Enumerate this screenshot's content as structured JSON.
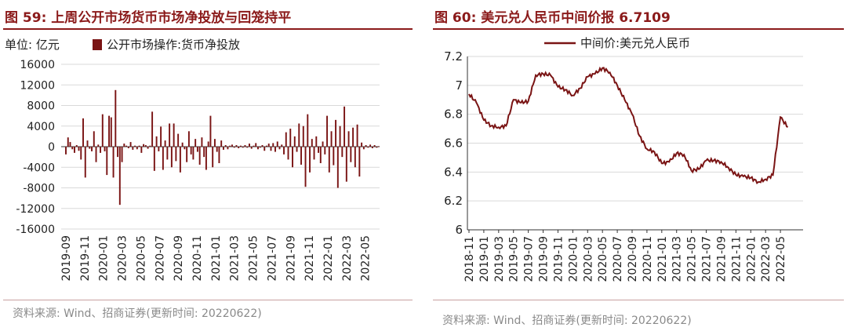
{
  "left": {
    "title": "图 59: 上周公开市场货币市场净投放与回笼持平",
    "source": "资料来源: Wind、招商证券(更新时间: 20220622)",
    "colors": {
      "bar": "#7a1414",
      "title": "#8b1a1a",
      "grid": "#d9d9d9"
    },
    "chart_data": {
      "type": "bar",
      "unit_label": "单位: 亿元",
      "legend": [
        "公开市场操作:货币净投放"
      ],
      "ylim": [
        -16000,
        16000
      ],
      "yticks": [
        "16000",
        "12000",
        "8000",
        "4000",
        "0",
        "-4000",
        "-8000",
        "-12000",
        "-16000"
      ],
      "xticks": [
        "2019-09",
        "2019-11",
        "2020-01",
        "2020-03",
        "2020-05",
        "2020-07",
        "2020-09",
        "2020-11",
        "2021-01",
        "2021-03",
        "2021-05",
        "2021-07",
        "2021-09",
        "2021-11",
        "2022-01",
        "2022-03",
        "2022-05"
      ],
      "start_month": "2019-09",
      "weeks": 146,
      "values": [
        -1500,
        1800,
        900,
        -500,
        -1200,
        300,
        -800,
        -2500,
        5500,
        -6000,
        1200,
        -400,
        -900,
        3000,
        -3000,
        400,
        -1200,
        6300,
        -900,
        -5500,
        6000,
        5700,
        -6000,
        11000,
        -2000,
        -11300,
        -3000,
        600,
        200,
        -300,
        900,
        -600,
        200,
        -500,
        200,
        -1200,
        500,
        300,
        -400,
        200,
        6800,
        -4700,
        2000,
        -900,
        3900,
        -4500,
        1200,
        -2500,
        4500,
        -4000,
        4500,
        -2800,
        2500,
        -5000,
        800,
        -500,
        -3000,
        3000,
        -1500,
        -2500,
        1500,
        -1000,
        -3500,
        1800,
        -2000,
        -4500,
        1000,
        6000,
        -4000,
        1500,
        -1000,
        -3200,
        1200,
        -600,
        300,
        -500,
        200,
        400,
        -200,
        300,
        -300,
        200,
        -200,
        300,
        -200,
        600,
        -400,
        200,
        700,
        -500,
        -200,
        300,
        -800,
        200,
        600,
        -800,
        700,
        -1000,
        1000,
        -500,
        400,
        -1500,
        2800,
        -2500,
        3500,
        -4000,
        2000,
        -1000,
        4500,
        -3500,
        4000,
        -7800,
        6300,
        -5000,
        1500,
        -2500,
        2000,
        -1200,
        -3200,
        1000,
        -1500,
        6000,
        -5000,
        3000,
        -3600,
        5200,
        -8000,
        4000,
        -2000,
        7800,
        -6800,
        3000,
        -3000,
        3700,
        -4000,
        4300,
        -5800,
        800,
        -500,
        300,
        -200,
        400,
        -300,
        300,
        -200,
        100
      ]
    }
  },
  "right": {
    "title": "图 60: 美元兑人民币中间价报 6.7109",
    "source": "资料来源: Wind、招商证券(更新时间: 20220622)",
    "colors": {
      "line": "#7a1414",
      "title": "#8b1a1a",
      "grid": "#d9d9d9"
    },
    "chart_data": {
      "type": "line",
      "legend": [
        "中间价:美元兑人民币"
      ],
      "ylim": [
        6.0,
        7.2
      ],
      "yticks": [
        "7.2",
        "7",
        "6.8",
        "6.6",
        "6.4",
        "6.2",
        "6"
      ],
      "xticks": [
        "2018-11",
        "2019-01",
        "2019-03",
        "2019-05",
        "2019-07",
        "2019-09",
        "2019-11",
        "2020-01",
        "2020-03",
        "2020-05",
        "2020-07",
        "2020-09",
        "2020-11",
        "2021-01",
        "2021-03",
        "2021-05",
        "2021-07",
        "2021-09",
        "2021-11",
        "2022-01",
        "2022-03",
        "2022-05"
      ],
      "x": [
        "2018-11",
        "2018-12",
        "2019-01",
        "2019-02",
        "2019-03",
        "2019-04",
        "2019-05",
        "2019-06",
        "2019-07",
        "2019-08",
        "2019-09",
        "2019-10",
        "2019-11",
        "2019-12",
        "2020-01",
        "2020-02",
        "2020-03",
        "2020-04",
        "2020-05",
        "2020-06",
        "2020-07",
        "2020-08",
        "2020-09",
        "2020-10",
        "2020-11",
        "2020-12",
        "2021-01",
        "2021-02",
        "2021-03",
        "2021-04",
        "2021-05",
        "2021-06",
        "2021-07",
        "2021-08",
        "2021-09",
        "2021-10",
        "2021-11",
        "2021-12",
        "2022-01",
        "2022-02",
        "2022-03",
        "2022-04",
        "2022-05",
        "2022-06"
      ],
      "y": [
        6.94,
        6.88,
        6.76,
        6.72,
        6.71,
        6.72,
        6.9,
        6.88,
        6.89,
        7.07,
        7.08,
        7.07,
        6.99,
        6.97,
        6.93,
        6.98,
        7.06,
        7.08,
        7.12,
        7.09,
        7.0,
        6.9,
        6.8,
        6.65,
        6.56,
        6.54,
        6.46,
        6.47,
        6.53,
        6.52,
        6.41,
        6.42,
        6.48,
        6.48,
        6.47,
        6.43,
        6.38,
        6.37,
        6.36,
        6.33,
        6.35,
        6.38,
        6.78,
        6.71
      ]
    }
  }
}
